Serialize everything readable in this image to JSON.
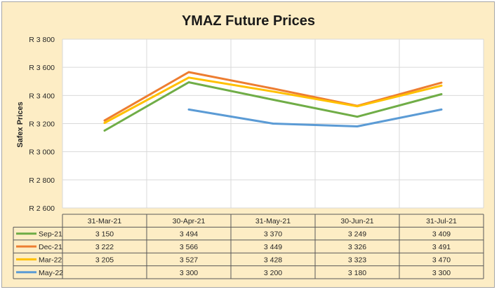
{
  "chart_data": {
    "type": "line",
    "title": "YMAZ Future Prices",
    "xlabel": "",
    "ylabel": "Safex Prices",
    "categories": [
      "31-Mar-21",
      "30-Apr-21",
      "31-May-21",
      "30-Jun-21",
      "31-Jul-21"
    ],
    "ylim": [
      2600,
      3800
    ],
    "yticks": [
      2600,
      2800,
      3000,
      3200,
      3400,
      3600,
      3800
    ],
    "ytick_labels": [
      "R 2 600",
      "R 2 800",
      "R 3 000",
      "R 3 200",
      "R 3 400",
      "R 3 600",
      "R 3 800"
    ],
    "grid": true,
    "legend": "data-table",
    "series": [
      {
        "name": "Sep-21",
        "color": "#70ad47",
        "values": [
          3150,
          3494,
          3370,
          3249,
          3409
        ],
        "labels": [
          "3 150",
          "3 494",
          "3 370",
          "3 249",
          "3 409"
        ]
      },
      {
        "name": "Dec-21",
        "color": "#ed7d31",
        "values": [
          3222,
          3566,
          3449,
          3326,
          3491
        ],
        "labels": [
          "3 222",
          "3 566",
          "3 449",
          "3 326",
          "3 491"
        ]
      },
      {
        "name": "Mar-22",
        "color": "#ffc000",
        "values": [
          3205,
          3527,
          3428,
          3323,
          3470
        ],
        "labels": [
          "3 205",
          "3 527",
          "3 428",
          "3 323",
          "3 470"
        ]
      },
      {
        "name": "May-22",
        "color": "#5b9bd5",
        "values": [
          null,
          3300,
          3200,
          3180,
          3300
        ],
        "labels": [
          "",
          "3 300",
          "3 200",
          "3 180",
          "3 300"
        ]
      }
    ]
  },
  "colors": {
    "background": "#fdedc5",
    "plot_background": "#ffffff",
    "gridline": "#d9d9d9",
    "table_border": "#595959"
  }
}
